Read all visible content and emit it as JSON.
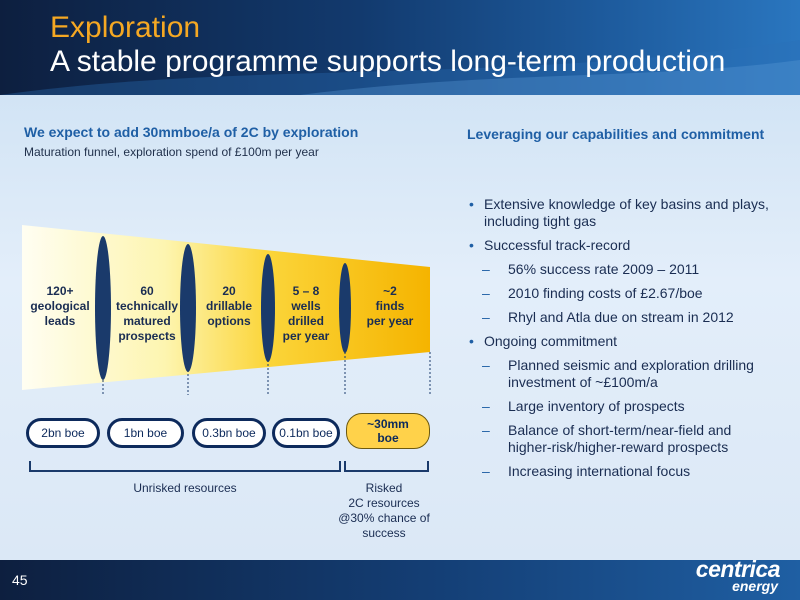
{
  "header": {
    "title": "Exploration",
    "subtitle": "A stable programme supports long-term production"
  },
  "left": {
    "heading": "We expect to add 30mmboe/a of 2C by exploration",
    "subheading": "Maturation funnel, exploration spend of £100m per year",
    "stages": [
      {
        "lines": [
          "120+",
          "geological",
          "leads"
        ]
      },
      {
        "lines": [
          "60",
          "technically",
          "matured",
          "prospects"
        ]
      },
      {
        "lines": [
          "20",
          "drillable",
          "options"
        ]
      },
      {
        "lines": [
          "5 – 8",
          "wells",
          "drilled",
          "per year"
        ]
      },
      {
        "lines": [
          "~2",
          "finds",
          "per year"
        ]
      }
    ],
    "resources": [
      "2bn boe",
      "1bn boe",
      "0.3bn boe",
      "0.1bn boe"
    ],
    "risked_resource": [
      "~30mm",
      "boe"
    ],
    "unrisked_caption": "Unrisked resources",
    "risked_caption": [
      "Risked",
      "2C resources",
      "@30% chance of",
      "success"
    ]
  },
  "right": {
    "heading": "Leveraging our capabilities and commitment",
    "bullets": [
      {
        "level": 1,
        "text": "Extensive knowledge of key basins and plays, including tight gas"
      },
      {
        "level": 1,
        "text": "Successful track-record"
      },
      {
        "level": 2,
        "text": "56% success rate 2009 – 2011"
      },
      {
        "level": 2,
        "text": "2010 finding costs of £2.67/boe"
      },
      {
        "level": 2,
        "text": "Rhyl and Atla due on stream in 2012"
      },
      {
        "level": 1,
        "text": "Ongoing commitment"
      },
      {
        "level": 2,
        "text": "Planned seismic and exploration drilling investment of ~£100m/a"
      },
      {
        "level": 2,
        "text": "Large inventory of prospects"
      },
      {
        "level": 2,
        "text": "Balance of short-term/near-field and higher-risk/higher-reward prospects"
      },
      {
        "level": 2,
        "text": "Increasing international focus"
      }
    ],
    "bullet_marker": "•",
    "sub_marker": "–"
  },
  "footer": {
    "page_number": "45",
    "logo_top": "centrica",
    "logo_bottom": "energy"
  },
  "colors": {
    "title_accent": "#f5a823",
    "heading_blue": "#1f5fa5",
    "funnel_light": "#fffde8",
    "funnel_gold": "#f7b500",
    "divider_navy": "#1a3a6b"
  }
}
